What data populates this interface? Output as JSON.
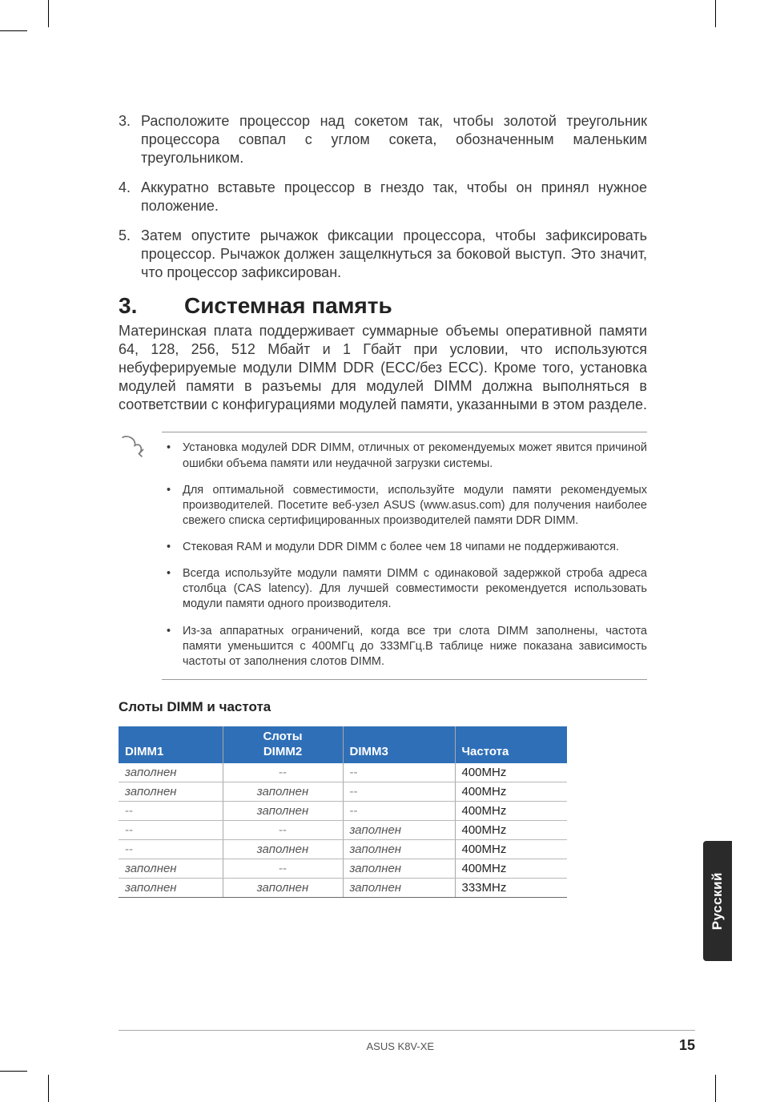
{
  "steps": [
    {
      "n": "3.",
      "t": "Расположите процессор над сокетом так, чтобы золотой треугольник процессора совпал с углом сокета, обозначенным маленьким треугольником."
    },
    {
      "n": "4.",
      "t": "Аккуратно вставьте процессор в гнездо так, чтобы он принял нужное положение."
    },
    {
      "n": "5.",
      "t": "Затем опустите рычажок фиксации процессора, чтобы зафиксировать процессор. Рычажок должен защелкнуться за боковой выступ. Это значит, что процессор зафиксирован."
    }
  ],
  "section": {
    "num": "3.",
    "title": "Системная память"
  },
  "intro": "Материнская плата поддерживает суммарные объемы оперативной памяти 64, 128, 256, 512 Мбайт и 1 Гбайт при условии, что используются небуферируемые модули DIMM DDR (ECC/без ECC). Кроме того, установка модулей памяти в разъемы для модулей DIMM должна выполняться в соответствии с конфигурациями модулей памяти, указанными в этом разделе.",
  "notes": [
    "Установка модулей DDR DIMM, отличных от рекомендуемых может явится причиной ошибки объема памяти или неудачной загрузки системы.",
    "Для оптимальной совместимости, используйте модули памяти рекомендуемых производителей. Посетите веб-узел ASUS (www.asus.com) для получения наиболее свежего списка сертифицированных производителей памяти DDR DIMM.",
    "Стековая RAM и модули DDR DIMM с более чем 18 чипами не поддерживаются.",
    "Всегда используйте модули памяти DIMM с одинаковой задержкой строба адреса столбца (CAS latency). Для лучшей совместимости рекомендуется использовать модули памяти одного производителя.",
    "Из-за аппаратных ограничений, когда все три слота DIMM заполнены, частота памяти уменьшится с 400МГц до 333МГц.В таблице ниже показана зависимость частоты от заполнения слотов DIMM."
  ],
  "subheading": "Слоты DIMM и частота",
  "table": {
    "group_label": "Слоты",
    "headers": [
      "DIMM1",
      "DIMM2",
      "DIMM3",
      "Частота"
    ],
    "filled": "заполнен",
    "empty": "--",
    "rows": [
      [
        "f",
        "e",
        "e",
        "400MHz"
      ],
      [
        "f",
        "f",
        "e",
        "400MHz"
      ],
      [
        "e",
        "f",
        "e",
        "400MHz"
      ],
      [
        "e",
        "e",
        "f",
        "400MHz"
      ],
      [
        "e",
        "f",
        "f",
        "400MHz"
      ],
      [
        "f",
        "e",
        "f",
        "400MHz"
      ],
      [
        "f",
        "f",
        "f",
        "333MHz"
      ]
    ]
  },
  "sidetab": "Русский",
  "footer": {
    "title": "ASUS K8V-XE",
    "page": "15"
  },
  "colors": {
    "header_bg": "#2f6fb7",
    "sidetab_bg": "#2a2a2a"
  }
}
